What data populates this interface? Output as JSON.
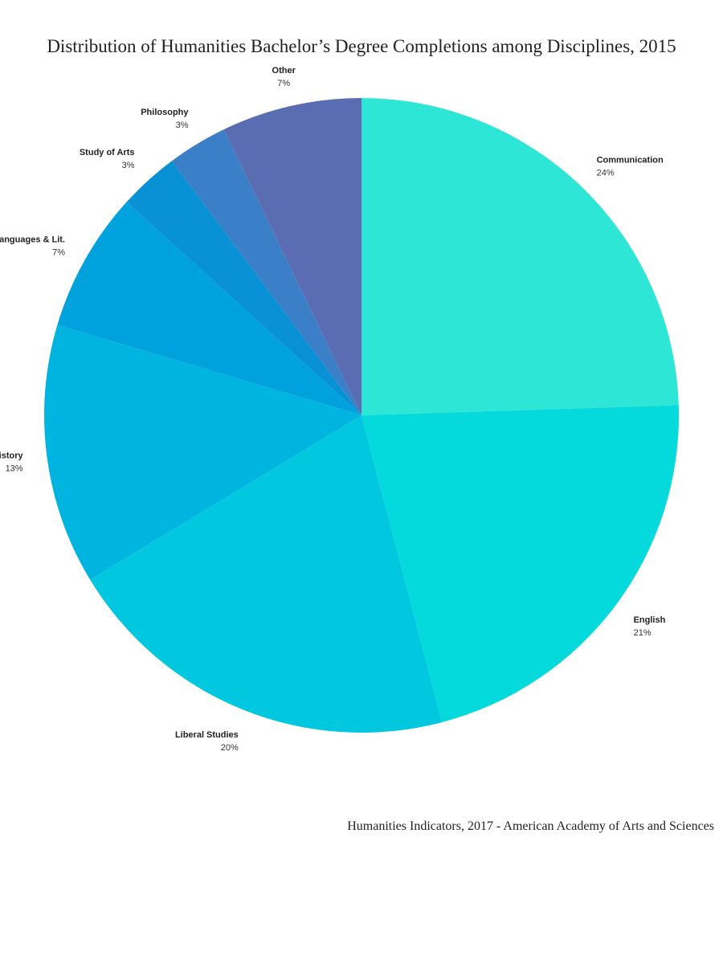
{
  "chart_data": {
    "type": "pie",
    "title": "Distribution of Humanities Bachelor’s Degree Completions among Disciplines, 2015",
    "slices": [
      {
        "label": "Communication",
        "value": 24,
        "value_label": "24%",
        "color": "#2ee6d6"
      },
      {
        "label": "English",
        "value": 21,
        "value_label": "21%",
        "color": "#04d9dc"
      },
      {
        "label": "Liberal Studies",
        "value": 20,
        "value_label": "20%",
        "color": "#01c7df"
      },
      {
        "label": "History",
        "value": 13,
        "value_label": "13%",
        "color": "#00b4e0"
      },
      {
        "label": "Languages & Lit.",
        "value": 7,
        "value_label": "7%",
        "color": "#00a2de"
      },
      {
        "label": "Study of Arts",
        "value": 3,
        "value_label": "3%",
        "color": "#0891d4"
      },
      {
        "label": "Philosophy",
        "value": 3,
        "value_label": "3%",
        "color": "#3a7fc7"
      },
      {
        "label": "Other",
        "value": 7,
        "value_label": "7%",
        "color": "#5b6db2"
      }
    ],
    "start_angle": "12 o'clock",
    "direction": "clockwise",
    "legend": "none"
  },
  "source": "Humanities Indicators, 2017 - American Academy of Arts and Sciences"
}
